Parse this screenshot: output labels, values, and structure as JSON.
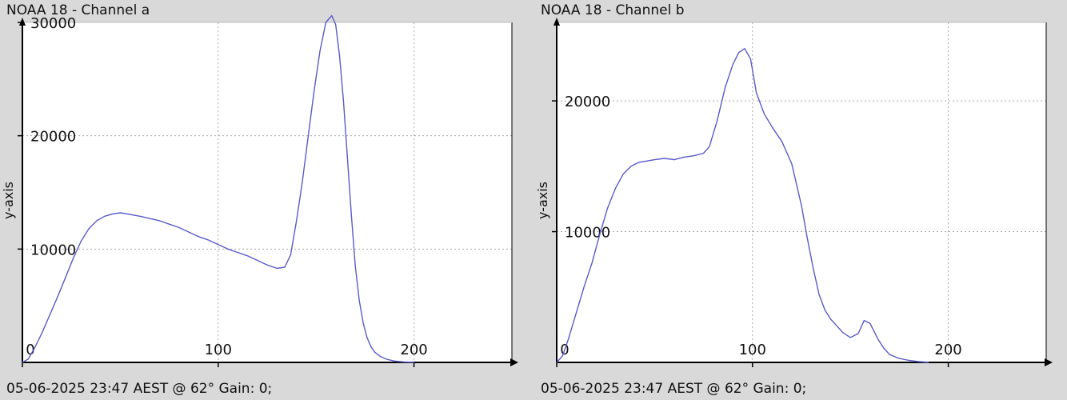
{
  "colors": {
    "background": "#d9d9d9",
    "plot_bg": "#ffffff",
    "grid": "#a8a8a8",
    "axis": "#000000",
    "line": "#5a5acb"
  },
  "chart_data": [
    {
      "type": "line",
      "title": "NOAA 18 - Channel a",
      "footer": "05-06-2025 23:47 AEST @ 62° Gain: 0;",
      "ylabel": "y-axis",
      "xlabel": "",
      "xlim": [
        0,
        250
      ],
      "ylim": [
        0,
        30000
      ],
      "xticks": [
        0,
        100,
        200
      ],
      "xtick_labels": [
        "0",
        "100",
        "200"
      ],
      "yticks": [
        10000,
        20000,
        30000
      ],
      "ytick_labels": [
        "10000",
        "20000",
        "30000"
      ],
      "grid": true,
      "series": [
        {
          "x": [
            0,
            3,
            6,
            10,
            14,
            18,
            22,
            26,
            30,
            34,
            38,
            42,
            46,
            50,
            55,
            60,
            65,
            70,
            75,
            80,
            85,
            90,
            95,
            100,
            105,
            110,
            115,
            120,
            125,
            130,
            134,
            137,
            140,
            143,
            146,
            149,
            152,
            155,
            158,
            160,
            162,
            164,
            166,
            168,
            170,
            172,
            174,
            176,
            178,
            180,
            183,
            186,
            190,
            195,
            200
          ],
          "y": [
            0,
            300,
            1200,
            2600,
            4200,
            5800,
            7500,
            9200,
            10700,
            11800,
            12500,
            12900,
            13100,
            13200,
            13050,
            12900,
            12700,
            12500,
            12200,
            11900,
            11500,
            11100,
            10800,
            10400,
            10000,
            9700,
            9400,
            9000,
            8600,
            8300,
            8400,
            9500,
            12500,
            16000,
            20000,
            24000,
            27500,
            30000,
            30600,
            29800,
            27000,
            23000,
            18000,
            13000,
            8500,
            5500,
            3500,
            2200,
            1400,
            900,
            500,
            280,
            120,
            40,
            0
          ]
        }
      ]
    },
    {
      "type": "line",
      "title": "NOAA 18 - Channel b",
      "footer": "05-06-2025 23:47 AEST @ 62° Gain: 0;",
      "ylabel": "y-axis",
      "xlabel": "",
      "xlim": [
        0,
        250
      ],
      "ylim": [
        0,
        26000
      ],
      "xticks": [
        0,
        100,
        200
      ],
      "xtick_labels": [
        "0",
        "100",
        "200"
      ],
      "yticks": [
        10000,
        20000
      ],
      "ytick_labels": [
        "10000",
        "20000"
      ],
      "grid": true,
      "series": [
        {
          "x": [
            0,
            3,
            6,
            10,
            14,
            18,
            22,
            26,
            30,
            34,
            38,
            42,
            46,
            50,
            55,
            60,
            65,
            70,
            75,
            78,
            82,
            86,
            90,
            93,
            96,
            99,
            102,
            106,
            110,
            115,
            120,
            125,
            128,
            131,
            134,
            137,
            140,
            143,
            146,
            150,
            154,
            157,
            160,
            162,
            164,
            167,
            170,
            175,
            180,
            185,
            190
          ],
          "y": [
            0,
            500,
            1800,
            3800,
            5800,
            7600,
            9800,
            11800,
            13300,
            14400,
            15000,
            15300,
            15400,
            15500,
            15600,
            15500,
            15700,
            15800,
            16000,
            16500,
            18500,
            21000,
            22800,
            23700,
            24000,
            23200,
            20600,
            19000,
            18000,
            16900,
            15200,
            12000,
            9500,
            7200,
            5200,
            4000,
            3300,
            2800,
            2300,
            1900,
            2200,
            3200,
            3000,
            2400,
            1800,
            1100,
            600,
            300,
            150,
            60,
            0
          ]
        }
      ]
    }
  ]
}
